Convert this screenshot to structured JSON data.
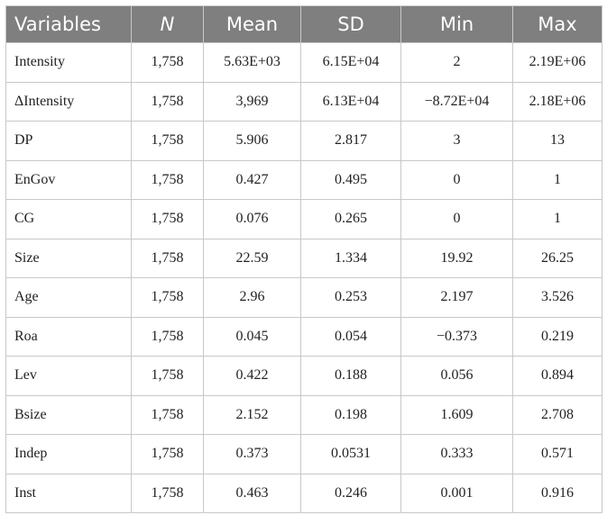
{
  "table": {
    "headers": [
      "Variables",
      "N",
      "Mean",
      "SD",
      "Min",
      "Max"
    ],
    "rows": [
      [
        "Intensity",
        "1,758",
        "5.63E+03",
        "6.15E+04",
        "2",
        "2.19E+06"
      ],
      [
        "ΔIntensity",
        "1,758",
        "3,969",
        "6.13E+04",
        "−8.72E+04",
        "2.18E+06"
      ],
      [
        "DP",
        "1,758",
        "5.906",
        "2.817",
        "3",
        "13"
      ],
      [
        "EnGov",
        "1,758",
        "0.427",
        "0.495",
        "0",
        "1"
      ],
      [
        "CG",
        "1,758",
        "0.076",
        "0.265",
        "0",
        "1"
      ],
      [
        "Size",
        "1,758",
        "22.59",
        "1.334",
        "19.92",
        "26.25"
      ],
      [
        "Age",
        "1,758",
        "2.96",
        "0.253",
        "2.197",
        "3.526"
      ],
      [
        "Roa",
        "1,758",
        "0.045",
        "0.054",
        "−0.373",
        "0.219"
      ],
      [
        "Lev",
        "1,758",
        "0.422",
        "0.188",
        "0.056",
        "0.894"
      ],
      [
        "Bsize",
        "1,758",
        "2.152",
        "0.198",
        "1.609",
        "2.708"
      ],
      [
        "Indep",
        "1,758",
        "0.373",
        "0.0531",
        "0.333",
        "0.571"
      ],
      [
        "Inst",
        "1,758",
        "0.463",
        "0.246",
        "0.001",
        "0.916"
      ]
    ]
  }
}
